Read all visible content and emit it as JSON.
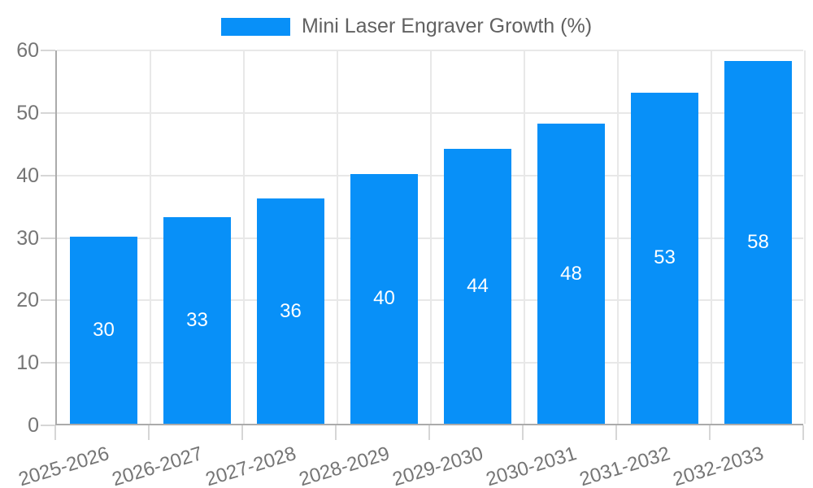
{
  "legend": {
    "title": "Mini Laser Engraver Growth (%)"
  },
  "chart_data": {
    "type": "bar",
    "title": "Mini Laser Engraver Growth (%)",
    "categories": [
      "2025-2026",
      "2026-2027",
      "2027-2028",
      "2028-2029",
      "2029-2030",
      "2030-2031",
      "2031-2032",
      "2032-2033"
    ],
    "values": [
      30,
      33,
      36,
      40,
      44,
      48,
      53,
      58
    ],
    "value_labels": [
      "30",
      "33",
      "36",
      "40",
      "44",
      "48",
      "53",
      "58"
    ],
    "xlabel": "",
    "ylabel": "",
    "ylim": [
      0,
      60
    ],
    "yticks": [
      0,
      10,
      20,
      30,
      40,
      50,
      60
    ],
    "grid": true,
    "legend_position": "top-center",
    "value_label_position": "center-of-bar",
    "colors": {
      "bar": "#0890f8",
      "grid": "#e8e8e8",
      "axis": "#ababab",
      "tick": "#d6d6d6",
      "axis_label": "#757575",
      "legend_title": "#616161",
      "value_label": "#ffffff",
      "background": "#ffffff"
    }
  }
}
